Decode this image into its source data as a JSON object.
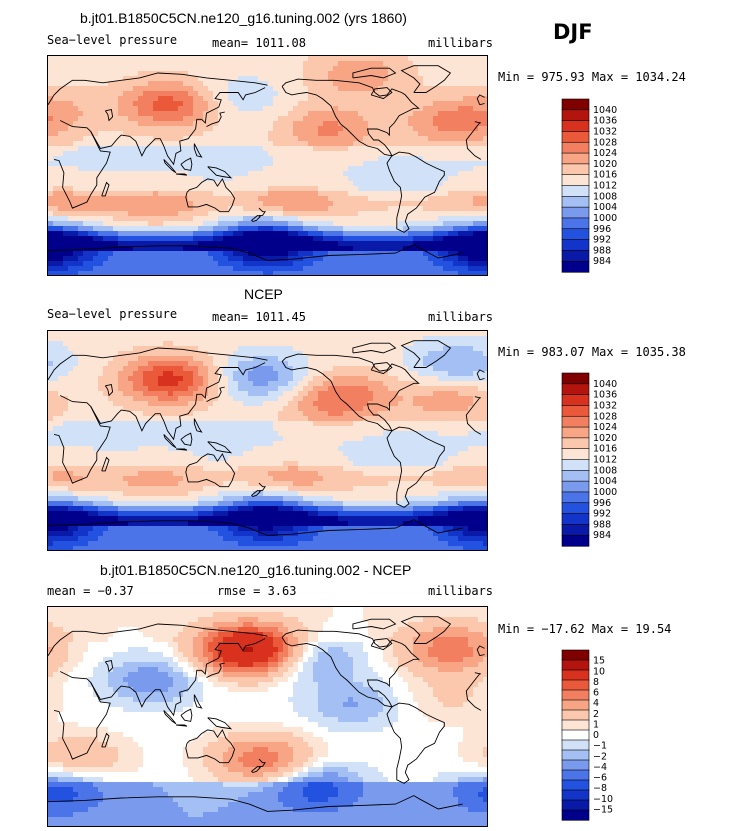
{
  "figure": {
    "season": "DJF",
    "colors": {
      "ocean_bg": "#d8e8f7",
      "coast": "#000000",
      "abs_palette": [
        "#00008b",
        "#0a1aa8",
        "#1234c8",
        "#2452e0",
        "#4a74e8",
        "#7a9aee",
        "#a4bff3",
        "#d0e1f8",
        "#fde5d6",
        "#fbc8ad",
        "#f7a584",
        "#f28060",
        "#ea5a3a",
        "#d8321f",
        "#b4140e",
        "#800000"
      ],
      "diff_palette": [
        "#00008b",
        "#0a1aa8",
        "#1234c8",
        "#2452e0",
        "#4a74e8",
        "#7a9aee",
        "#a4bff3",
        "#d0e1f8",
        "#ffffff",
        "#fde5d6",
        "#fbc8ad",
        "#f7a584",
        "#f28060",
        "#ea5a3a",
        "#d8321f",
        "#b4140e",
        "#800000"
      ]
    },
    "panels": [
      {
        "title": "b.jt01.B1850C5CN.ne120_g16.tuning.002 (yrs 1860)",
        "left_label": "Sea−level pressure",
        "mid_label": "mean= 1011.08",
        "right_label": "millibars",
        "stats": "Min = 975.93 Max = 1034.24",
        "colorbar_labels": [
          "1040",
          "1036",
          "1032",
          "1028",
          "1024",
          "1020",
          "1016",
          "1012",
          "1008",
          "1004",
          "1000",
          "996",
          "992",
          "988",
          "984"
        ]
      },
      {
        "title": "NCEP",
        "left_label": "Sea−level pressure",
        "mid_label": "mean= 1011.45",
        "right_label": "millibars",
        "stats": "Min = 983.07 Max = 1035.38",
        "colorbar_labels": [
          "1040",
          "1036",
          "1032",
          "1028",
          "1024",
          "1020",
          "1016",
          "1012",
          "1008",
          "1004",
          "1000",
          "996",
          "992",
          "988",
          "984"
        ]
      },
      {
        "title": "b.jt01.B1850C5CN.ne120_g16.tuning.002 - NCEP",
        "left_label": "mean =   −0.37",
        "mid_label": "rmse =    3.63",
        "right_label": "millibars",
        "stats": "Min = −17.62 Max =  19.54",
        "colorbar_labels": [
          "15",
          "10",
          "8",
          "6",
          "4",
          "2",
          "1",
          "0",
          "−1",
          "−2",
          "−4",
          "−6",
          "−8",
          "−10",
          "−15"
        ]
      }
    ]
  },
  "chart_data": [
    {
      "type": "heatmap",
      "title": "b.jt01.B1850C5CN.ne120_g16.tuning.002 (yrs 1860)",
      "variable": "Sea-level pressure",
      "units": "millibars",
      "mean": 1011.08,
      "min": 975.93,
      "max": 1034.24,
      "contour_levels": [
        984,
        988,
        992,
        996,
        1000,
        1004,
        1008,
        1012,
        1016,
        1020,
        1024,
        1028,
        1032,
        1036,
        1040
      ],
      "projection": "cylindrical equidistant, Pacific-centered (0-360E), 90S-90N",
      "features": [
        {
          "lon": 100,
          "lat": 50,
          "value": 1030
        },
        {
          "lon": 155,
          "lat": 55,
          "value": 1006
        },
        {
          "lon": 230,
          "lat": 30,
          "value": 1024
        },
        {
          "lon": 330,
          "lat": 35,
          "value": 1024
        },
        {
          "lon": 10,
          "lat": 45,
          "value": 1018
        },
        {
          "lon": 255,
          "lat": 75,
          "value": 1022
        },
        {
          "lon": 200,
          "lat": -30,
          "value": 1022
        },
        {
          "lon": 10,
          "lat": -30,
          "value": 1020
        },
        {
          "lon": 90,
          "lat": -32,
          "value": 1020
        },
        {
          "lon": 180,
          "lat": -62,
          "value": 984
        },
        {
          "lon": 0,
          "lat": -65,
          "value": 984
        }
      ]
    },
    {
      "type": "heatmap",
      "title": "NCEP",
      "variable": "Sea-level pressure",
      "units": "millibars",
      "mean": 1011.45,
      "min": 983.07,
      "max": 1035.38,
      "contour_levels": [
        984,
        988,
        992,
        996,
        1000,
        1004,
        1008,
        1012,
        1016,
        1020,
        1024,
        1028,
        1032,
        1036,
        1040
      ],
      "projection": "cylindrical equidistant, Pacific-centered (0-360E), 90S-90N",
      "features": [
        {
          "lon": 100,
          "lat": 50,
          "value": 1034
        },
        {
          "lon": 175,
          "lat": 52,
          "value": 998
        },
        {
          "lon": 335,
          "lat": 62,
          "value": 1000
        },
        {
          "lon": 230,
          "lat": 30,
          "value": 1022
        },
        {
          "lon": 330,
          "lat": 35,
          "value": 1022
        },
        {
          "lon": 250,
          "lat": 40,
          "value": 1020
        },
        {
          "lon": 200,
          "lat": -30,
          "value": 1020
        },
        {
          "lon": 10,
          "lat": -30,
          "value": 1018
        },
        {
          "lon": 90,
          "lat": -32,
          "value": 1018
        },
        {
          "lon": 180,
          "lat": -62,
          "value": 988
        },
        {
          "lon": 0,
          "lat": -65,
          "value": 988
        }
      ]
    },
    {
      "type": "heatmap",
      "title": "b.jt01.B1850C5CN.ne120_g16.tuning.002 - NCEP",
      "variable": "Sea-level pressure difference",
      "units": "millibars",
      "mean": -0.37,
      "rmse": 3.63,
      "min": -17.62,
      "max": 19.54,
      "contour_levels": [
        -15,
        -10,
        -8,
        -6,
        -4,
        -2,
        -1,
        0,
        1,
        2,
        4,
        6,
        8,
        10,
        15
      ],
      "projection": "cylindrical equidistant, Pacific-centered (0-360E), 90S-90N",
      "features": [
        {
          "lon": 165,
          "lat": 55,
          "value": 18
        },
        {
          "lon": 330,
          "lat": 55,
          "value": 8
        },
        {
          "lon": 215,
          "lat": 48,
          "value": -4
        },
        {
          "lon": 85,
          "lat": 30,
          "value": -4
        },
        {
          "lon": 175,
          "lat": -35,
          "value": 8
        },
        {
          "lon": 25,
          "lat": -35,
          "value": 4
        },
        {
          "lon": 220,
          "lat": -60,
          "value": -6
        },
        {
          "lon": 250,
          "lat": 10,
          "value": -3
        },
        {
          "lon": 10,
          "lat": -62,
          "value": -6
        },
        {
          "lon": 330,
          "lat": 15,
          "value": 2
        }
      ]
    }
  ]
}
